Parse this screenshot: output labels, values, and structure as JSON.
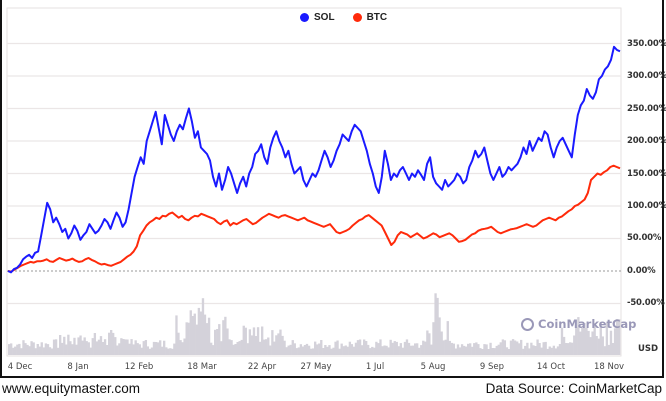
{
  "legend": {
    "items": [
      {
        "label": "SOL",
        "color": "#1a1aff"
      },
      {
        "label": "BTC",
        "color": "#ff2a0a"
      }
    ]
  },
  "y_axis": {
    "ticks": [
      "350.00%",
      "300.00%",
      "250.00%",
      "200.00%",
      "150.00%",
      "100.00%",
      "50.00%",
      "0.00%",
      "-50.00%"
    ],
    "unit_label": "USD"
  },
  "x_axis": {
    "ticks": [
      "4 Dec",
      "8 Jan",
      "12 Feb",
      "18 Mar",
      "22 Apr",
      "27 May",
      "1 Jul",
      "5 Aug",
      "9 Sep",
      "14 Oct",
      "18 Nov"
    ]
  },
  "watermark": "CoinMarketCap",
  "footer": {
    "left": "www.equitymaster.com",
    "right": "Data Source: CoinMarketCap"
  },
  "chart_data": {
    "type": "line",
    "title": "",
    "xlabel": "",
    "ylabel": "",
    "ylim": [
      -50,
      350
    ],
    "y_unit": "%",
    "legend_position": "top",
    "grid": true,
    "categories": [
      "4 Dec",
      "8 Jan",
      "12 Feb",
      "18 Mar",
      "22 Apr",
      "27 May",
      "1 Jul",
      "5 Aug",
      "9 Sep",
      "14 Oct",
      "18 Nov"
    ],
    "series": [
      {
        "name": "SOL",
        "color": "#1a1aff",
        "values": [
          0,
          55,
          75,
          245,
          165,
          190,
          150,
          200,
          130,
          150,
          340
        ]
      },
      {
        "name": "BTC",
        "color": "#ff2a0a",
        "values": [
          0,
          12,
          12,
          85,
          72,
          85,
          55,
          75,
          45,
          55,
          160
        ]
      }
    ],
    "secondary": {
      "type": "bar",
      "name": "Volume",
      "color": "#d4d2da"
    }
  }
}
